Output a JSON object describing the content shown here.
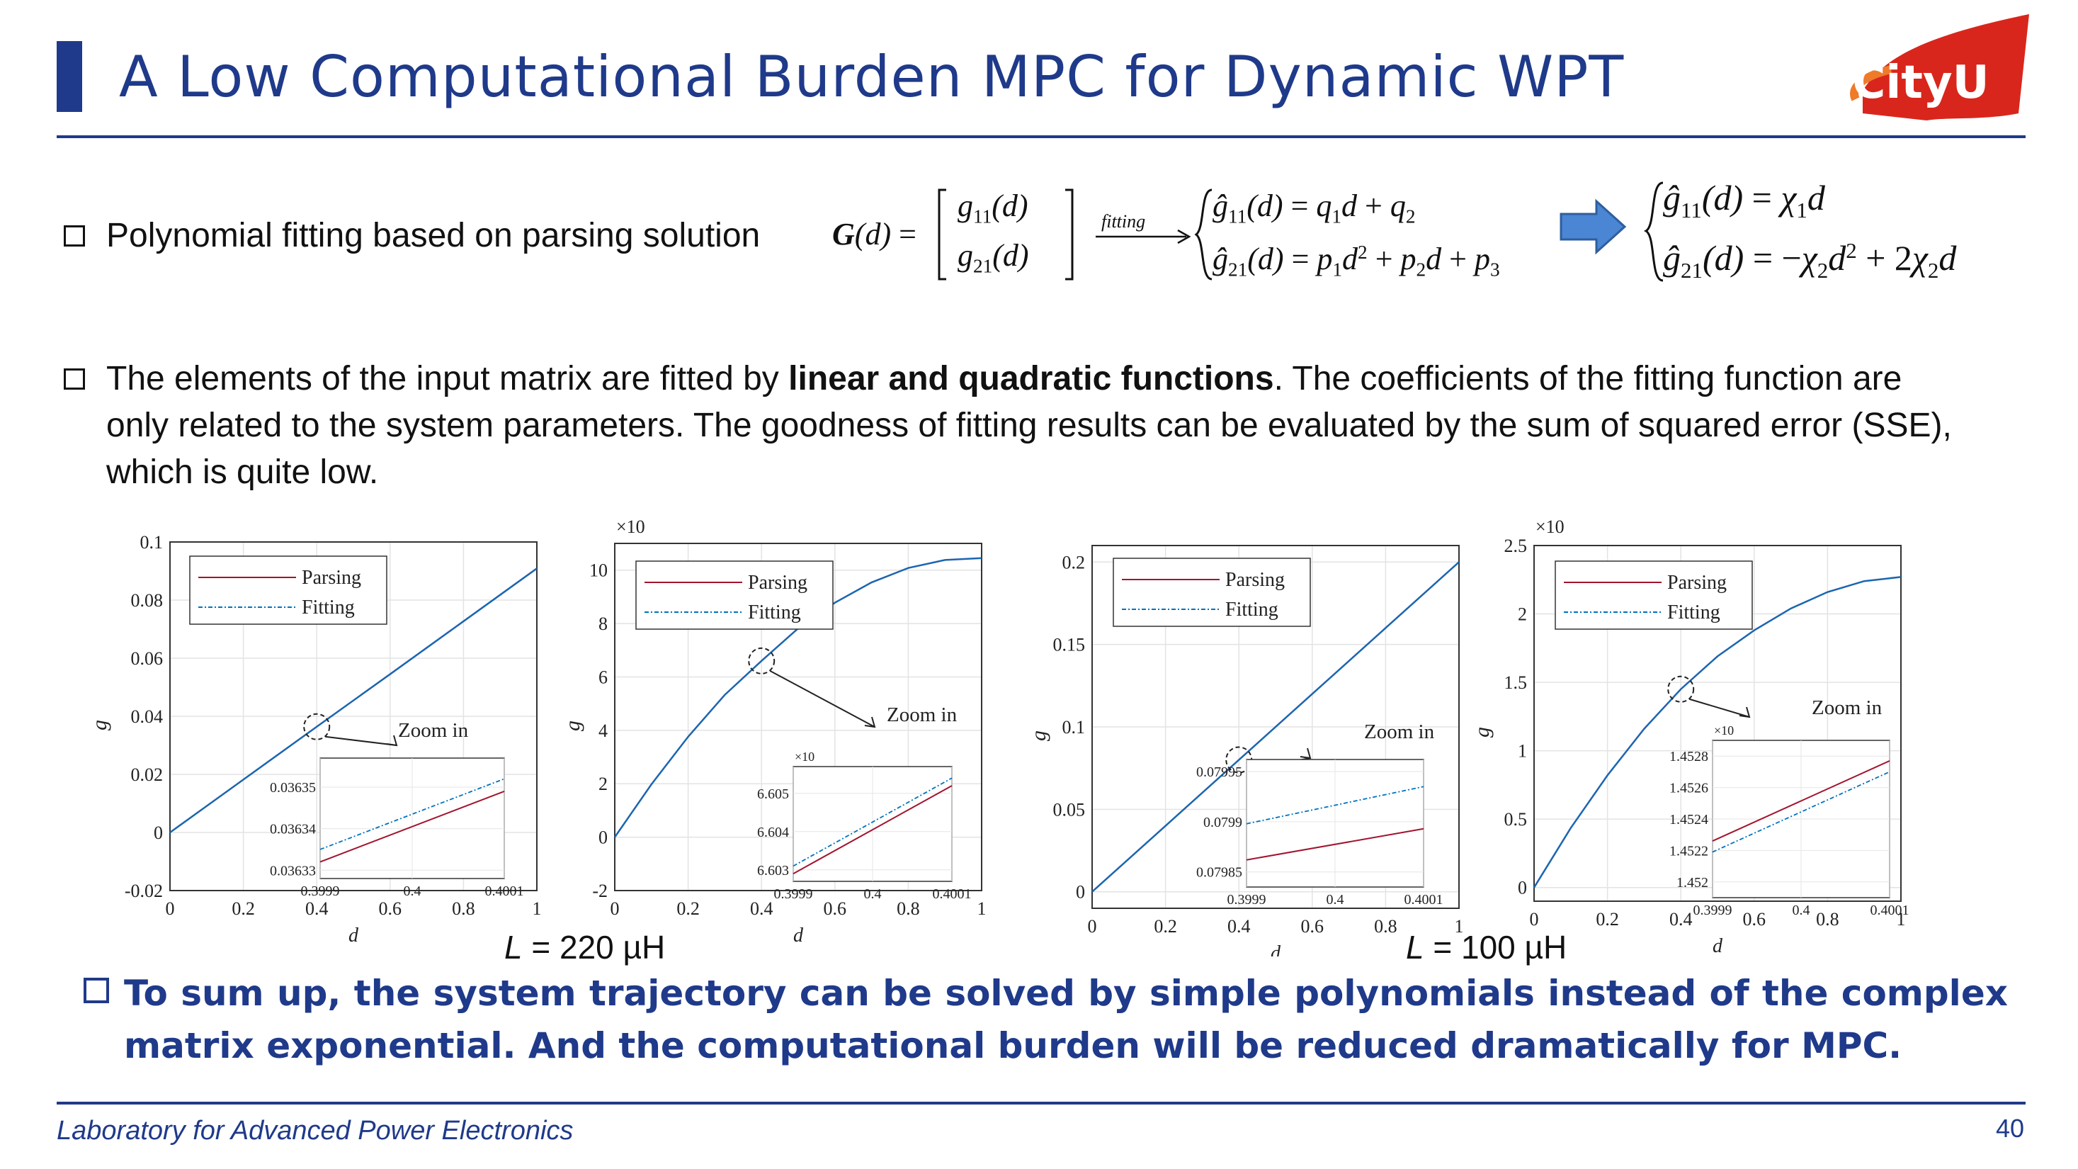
{
  "slide": {
    "title": "A Low Computational Burden MPC for Dynamic WPT",
    "logo_text": "CityU",
    "page_number": "40",
    "footer": "Laboratory for Advanced Power Electronics"
  },
  "bullets": {
    "b1": "Polynomial fitting based on parsing solution",
    "b2_pre": "The elements of the input matrix are fitted by ",
    "b2_bold": "linear and quadratic functions",
    "b2_post": ". The coefficients of the fitting function are only related to the system parameters. The goodness of fitting results can be evaluated by the sum of squared error (SSE), which is quite low.",
    "summary": "To sum up, the system trajectory can be solved by simple polynomials instead of the complex matrix exponential. And the computational burden will be reduced dramatically for MPC."
  },
  "equation": {
    "arrow_label": "fitting"
  },
  "captions": {
    "left_L": "L",
    "left_value": " = 220 µH",
    "right_L": "L",
    "right_value": " = 100 µH"
  },
  "colors": {
    "primary": "#1f3a8a",
    "parsing": "#a2142f",
    "fitting": "#0072bd",
    "curve": "#2b5ea8",
    "arrow_fill": "#4a86d4",
    "logo_red": "#d9261c"
  },
  "chart_data": [
    {
      "type": "line",
      "ylabel": "g11",
      "xlabel": "d",
      "xlim": [
        0,
        1
      ],
      "ylim": [
        -0.02,
        0.1
      ],
      "xticks": [
        "0",
        "0.2",
        "0.4",
        "0.6",
        "0.8",
        "1"
      ],
      "yticks": [
        "-0.02",
        "0",
        "0.02",
        "0.04",
        "0.06",
        "0.08",
        "0.1"
      ],
      "series": [
        {
          "name": "Parsing",
          "x": [
            0,
            0.2,
            0.4,
            0.6,
            0.8,
            1
          ],
          "y": [
            0,
            0.0182,
            0.0364,
            0.0545,
            0.0727,
            0.0909
          ]
        },
        {
          "name": "Fitting",
          "x": [
            0,
            0.2,
            0.4,
            0.6,
            0.8,
            1
          ],
          "y": [
            0,
            0.0182,
            0.0364,
            0.0545,
            0.0727,
            0.0909
          ]
        }
      ],
      "zoom": {
        "label": "Zoom in",
        "exponent": "",
        "xticks": [
          "0.3999",
          "0.4",
          "0.4001"
        ],
        "yticks": [
          "0.03635",
          "0.03634",
          "0.03633"
        ],
        "xlim": [
          0.3999,
          0.4001
        ],
        "ylim": [
          0.036328,
          0.036357
        ],
        "parsing": [
          [
            0.3999,
            0.036332
          ],
          [
            0.4001,
            0.036349
          ]
        ],
        "fitting": [
          [
            0.3999,
            0.036335
          ],
          [
            0.4001,
            0.036352
          ]
        ],
        "marker": [
          0.4,
          0.0364
        ]
      }
    },
    {
      "type": "line",
      "ylabel": "g21",
      "xlabel": "d",
      "exponent": "-4",
      "xlim": [
        0,
        1
      ],
      "ylim": [
        -2,
        11
      ],
      "xticks": [
        "0",
        "0.2",
        "0.4",
        "0.6",
        "0.8",
        "1"
      ],
      "yticks": [
        "-2",
        "0",
        "2",
        "4",
        "6",
        "8",
        "10"
      ],
      "series": [
        {
          "name": "Parsing",
          "x": [
            0,
            0.1,
            0.2,
            0.3,
            0.4,
            0.5,
            0.6,
            0.7,
            0.8,
            0.9,
            1
          ],
          "y": [
            0,
            1.98,
            3.76,
            5.33,
            6.6,
            7.82,
            8.78,
            9.54,
            10.08,
            10.38,
            10.45
          ]
        },
        {
          "name": "Fitting",
          "x": [
            0,
            0.1,
            0.2,
            0.3,
            0.4,
            0.5,
            0.6,
            0.7,
            0.8,
            0.9,
            1
          ],
          "y": [
            0,
            1.98,
            3.76,
            5.33,
            6.6,
            7.82,
            8.78,
            9.54,
            10.08,
            10.38,
            10.45
          ]
        }
      ],
      "zoom": {
        "label": "Zoom in",
        "exponent": "-4",
        "xticks": [
          "0.3999",
          "0.4",
          "0.4001"
        ],
        "yticks": [
          "6.605",
          "6.604",
          "6.603"
        ],
        "xlim": [
          0.3999,
          0.4001
        ],
        "ylim": [
          6.6027,
          6.6057
        ],
        "parsing": [
          [
            0.3999,
            6.6029
          ],
          [
            0.4001,
            6.6052
          ]
        ],
        "fitting": [
          [
            0.3999,
            6.6031
          ],
          [
            0.4001,
            6.6054
          ]
        ],
        "marker": [
          0.4,
          6.6
        ]
      }
    },
    {
      "type": "line",
      "ylabel": "g11",
      "xlabel": "d",
      "xlim": [
        0,
        1
      ],
      "ylim": [
        -0.01,
        0.21
      ],
      "xticks": [
        "0",
        "0.2",
        "0.4",
        "0.6",
        "0.8",
        "1"
      ],
      "yticks": [
        "0",
        "0.05",
        "0.1",
        "0.15",
        "0.2"
      ],
      "series": [
        {
          "name": "Parsing",
          "x": [
            0,
            0.2,
            0.4,
            0.6,
            0.8,
            1
          ],
          "y": [
            0,
            0.04,
            0.08,
            0.12,
            0.16,
            0.2
          ]
        },
        {
          "name": "Fitting",
          "x": [
            0,
            0.2,
            0.4,
            0.6,
            0.8,
            1
          ],
          "y": [
            0,
            0.04,
            0.08,
            0.12,
            0.16,
            0.2
          ]
        }
      ],
      "zoom": {
        "label": "Zoom in",
        "exponent": "",
        "xticks": [
          "0.3999",
          "0.4",
          "0.4001"
        ],
        "yticks": [
          "0.07995",
          "0.0799",
          "0.07985"
        ],
        "xlim": [
          0.3999,
          0.4001
        ],
        "ylim": [
          0.079835,
          0.079962
        ],
        "parsing": [
          [
            0.3999,
            0.079862
          ],
          [
            0.4001,
            0.079893
          ]
        ],
        "fitting": [
          [
            0.3999,
            0.079898
          ],
          [
            0.4001,
            0.079935
          ]
        ],
        "marker": [
          0.4,
          0.08
        ]
      }
    },
    {
      "type": "line",
      "ylabel": "g21",
      "xlabel": "d",
      "exponent": "-3",
      "xlim": [
        0,
        1
      ],
      "ylim": [
        -0.1,
        2.5
      ],
      "xticks": [
        "0",
        "0.2",
        "0.4",
        "0.6",
        "0.8",
        "1"
      ],
      "yticks": [
        "0",
        "0.5",
        "1",
        "1.5",
        "2",
        "2.5"
      ],
      "series": [
        {
          "name": "Parsing",
          "x": [
            0,
            0.1,
            0.2,
            0.3,
            0.4,
            0.5,
            0.6,
            0.7,
            0.8,
            0.9,
            1
          ],
          "y": [
            0,
            0.435,
            0.82,
            1.16,
            1.45,
            1.69,
            1.88,
            2.04,
            2.16,
            2.24,
            2.27
          ]
        },
        {
          "name": "Fitting",
          "x": [
            0,
            0.1,
            0.2,
            0.3,
            0.4,
            0.5,
            0.6,
            0.7,
            0.8,
            0.9,
            1
          ],
          "y": [
            0,
            0.435,
            0.82,
            1.16,
            1.45,
            1.69,
            1.88,
            2.04,
            2.16,
            2.24,
            2.27
          ]
        }
      ],
      "zoom": {
        "label": "Zoom in",
        "exponent": "-3",
        "xticks": [
          "0.3999",
          "0.4",
          "0.4001"
        ],
        "yticks": [
          "1.4528",
          "1.4526",
          "1.4524",
          "1.4522",
          "1.452"
        ],
        "xlim": [
          0.3999,
          0.4001
        ],
        "ylim": [
          1.4519,
          1.4529
        ],
        "parsing": [
          [
            0.3999,
            1.45226
          ],
          [
            0.4001,
            1.45277
          ]
        ],
        "fitting": [
          [
            0.3999,
            1.45219
          ],
          [
            0.4001,
            1.4527
          ]
        ],
        "marker": [
          0.4,
          1.45
        ]
      }
    }
  ]
}
